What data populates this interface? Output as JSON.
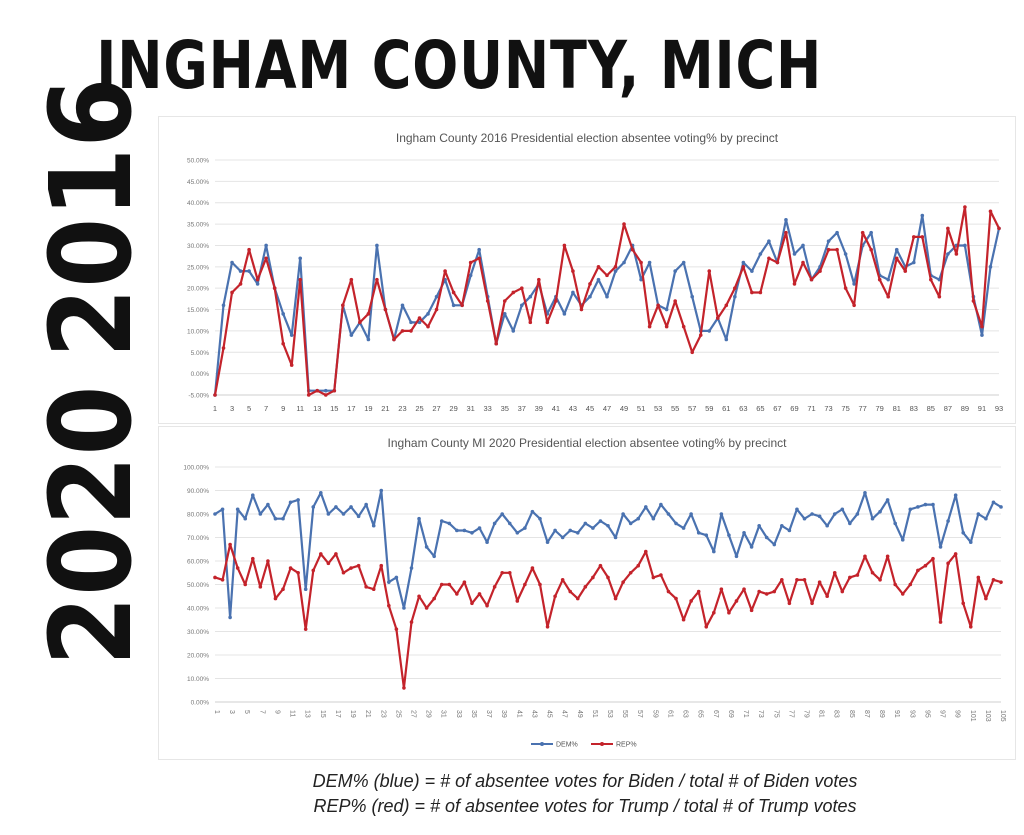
{
  "header": {
    "title": "INGHAM COUNTY, MICH"
  },
  "year_labels": {
    "first": "2016",
    "second": "2020"
  },
  "notes": {
    "dem": "DEM% (blue) = # of absentee votes for Biden / total # of Biden votes",
    "rep": "REP% (red) = # of absentee votes for Trump / total # of Trump votes"
  },
  "colors": {
    "dem": "#4a72b0",
    "rep": "#c4232b",
    "grid": "#e4e4e4",
    "axis_text": "#777777"
  },
  "chart_data": [
    {
      "type": "line",
      "title": "Ingham County 2016 Presidential election absentee voting% by precinct",
      "xlabel": "",
      "ylabel": "",
      "ylim": [
        -0.05,
        0.5
      ],
      "yticks": [
        -0.05,
        0,
        0.05,
        0.1,
        0.15,
        0.2,
        0.25,
        0.3,
        0.35,
        0.4,
        0.45,
        0.5
      ],
      "ytick_labels": [
        "-5.00%",
        "0.00%",
        "5.00%",
        "10.00%",
        "15.00%",
        "20.00%",
        "25.00%",
        "30.00%",
        "35.00%",
        "40.00%",
        "45.00%",
        "50.00%"
      ],
      "xtick_labels": [
        "1",
        "3",
        "5",
        "7",
        "9",
        "11",
        "13",
        "15",
        "17",
        "19",
        "21",
        "23",
        "25",
        "27",
        "29",
        "31",
        "33",
        "35",
        "37",
        "39",
        "41",
        "43",
        "45",
        "47",
        "49",
        "51",
        "53",
        "55",
        "57",
        "59",
        "61",
        "63",
        "65",
        "67",
        "69",
        "71",
        "73",
        "75",
        "77",
        "79",
        "81",
        "83",
        "85",
        "87",
        "89",
        "91",
        "93"
      ],
      "grid": true,
      "legend": "none",
      "series": [
        {
          "key": "dem",
          "values": [
            -0.05,
            0.16,
            0.26,
            0.24,
            0.24,
            0.21,
            0.3,
            0.2,
            0.14,
            0.09,
            0.27,
            -0.04,
            -0.04,
            -0.04,
            -0.04,
            0.16,
            0.09,
            0.12,
            0.08,
            0.3,
            0.15,
            0.08,
            0.16,
            0.12,
            0.12,
            0.14,
            0.18,
            0.22,
            0.16,
            0.16,
            0.23,
            0.29,
            0.18,
            0.07,
            0.14,
            0.1,
            0.16,
            0.18,
            0.21,
            0.14,
            0.18,
            0.14,
            0.19,
            0.16,
            0.18,
            0.22,
            0.18,
            0.24,
            0.26,
            0.3,
            0.22,
            0.26,
            0.16,
            0.15,
            0.24,
            0.26,
            0.18,
            0.1,
            0.1,
            0.13,
            0.08,
            0.18,
            0.26,
            0.24,
            0.28,
            0.31,
            0.26,
            0.36,
            0.28,
            0.3,
            0.22,
            0.25,
            0.31,
            0.33,
            0.28,
            0.21,
            0.3,
            0.33,
            0.23,
            0.22,
            0.29,
            0.25,
            0.26,
            0.37,
            0.23,
            0.22,
            0.28,
            0.3,
            0.3,
            0.18,
            0.09,
            0.25,
            0.34
          ]
        },
        {
          "key": "rep",
          "values": [
            -0.05,
            0.06,
            0.19,
            0.21,
            0.29,
            0.22,
            0.27,
            0.2,
            0.07,
            0.02,
            0.22,
            -0.05,
            -0.04,
            -0.05,
            -0.04,
            0.16,
            0.22,
            0.12,
            0.14,
            0.22,
            0.15,
            0.08,
            0.1,
            0.1,
            0.13,
            0.11,
            0.15,
            0.24,
            0.19,
            0.16,
            0.26,
            0.27,
            0.17,
            0.07,
            0.17,
            0.19,
            0.2,
            0.12,
            0.22,
            0.12,
            0.17,
            0.3,
            0.24,
            0.15,
            0.21,
            0.25,
            0.23,
            0.25,
            0.35,
            0.29,
            0.26,
            0.11,
            0.16,
            0.11,
            0.17,
            0.11,
            0.05,
            0.09,
            0.24,
            0.13,
            0.16,
            0.2,
            0.25,
            0.19,
            0.19,
            0.27,
            0.26,
            0.33,
            0.21,
            0.26,
            0.22,
            0.24,
            0.29,
            0.29,
            0.2,
            0.16,
            0.33,
            0.29,
            0.22,
            0.18,
            0.27,
            0.24,
            0.32,
            0.32,
            0.22,
            0.18,
            0.34,
            0.28,
            0.39,
            0.17,
            0.11,
            0.38,
            0.34
          ]
        }
      ]
    },
    {
      "type": "line",
      "title": "Ingham County MI 2020 Presidential election absentee voting% by precinct",
      "xlabel": "",
      "ylabel": "",
      "ylim": [
        0,
        1
      ],
      "yticks": [
        0,
        0.1,
        0.2,
        0.3,
        0.4,
        0.5,
        0.6,
        0.7,
        0.8,
        0.9,
        1.0
      ],
      "ytick_labels": [
        "0.00%",
        "10.00%",
        "20.00%",
        "30.00%",
        "40.00%",
        "50.00%",
        "60.00%",
        "70.00%",
        "80.00%",
        "90.00%",
        "100.00%"
      ],
      "xtick_labels": [
        "1",
        "3",
        "5",
        "7",
        "9",
        "11",
        "13",
        "15",
        "17",
        "19",
        "21",
        "23",
        "25",
        "27",
        "29",
        "31",
        "33",
        "35",
        "37",
        "39",
        "41",
        "43",
        "45",
        "47",
        "49",
        "51",
        "53",
        "55",
        "57",
        "59",
        "61",
        "63",
        "65",
        "67",
        "69",
        "71",
        "73",
        "75",
        "77",
        "79",
        "81",
        "83",
        "85",
        "87",
        "89",
        "91",
        "93",
        "95",
        "97",
        "99",
        "101",
        "103",
        "105"
      ],
      "grid": true,
      "legend": "bottom",
      "series": [
        {
          "key": "dem",
          "name": "DEM%",
          "values": [
            0.8,
            0.82,
            0.36,
            0.82,
            0.78,
            0.88,
            0.8,
            0.84,
            0.78,
            0.78,
            0.85,
            0.86,
            0.48,
            0.83,
            0.89,
            0.8,
            0.83,
            0.8,
            0.83,
            0.79,
            0.84,
            0.75,
            0.9,
            0.51,
            0.53,
            0.4,
            0.57,
            0.78,
            0.66,
            0.62,
            0.77,
            0.76,
            0.73,
            0.73,
            0.72,
            0.74,
            0.68,
            0.76,
            0.8,
            0.76,
            0.72,
            0.74,
            0.81,
            0.78,
            0.68,
            0.73,
            0.7,
            0.73,
            0.72,
            0.76,
            0.74,
            0.77,
            0.75,
            0.7,
            0.8,
            0.76,
            0.78,
            0.83,
            0.78,
            0.84,
            0.8,
            0.76,
            0.74,
            0.8,
            0.72,
            0.71,
            0.64,
            0.8,
            0.71,
            0.62,
            0.72,
            0.66,
            0.75,
            0.7,
            0.67,
            0.75,
            0.73,
            0.82,
            0.78,
            0.8,
            0.79,
            0.75,
            0.8,
            0.82,
            0.76,
            0.8,
            0.89,
            0.78,
            0.81,
            0.86,
            0.76,
            0.69,
            0.82,
            0.83,
            0.84,
            0.84,
            0.66,
            0.77,
            0.88,
            0.72,
            0.68,
            0.8,
            0.78,
            0.85,
            0.83
          ]
        },
        {
          "key": "rep",
          "name": "REP%",
          "values": [
            0.53,
            0.52,
            0.67,
            0.57,
            0.5,
            0.61,
            0.49,
            0.6,
            0.44,
            0.48,
            0.57,
            0.55,
            0.31,
            0.56,
            0.63,
            0.59,
            0.63,
            0.55,
            0.57,
            0.58,
            0.49,
            0.48,
            0.58,
            0.41,
            0.31,
            0.06,
            0.34,
            0.45,
            0.4,
            0.44,
            0.5,
            0.5,
            0.46,
            0.51,
            0.42,
            0.46,
            0.41,
            0.49,
            0.55,
            0.55,
            0.43,
            0.5,
            0.57,
            0.5,
            0.32,
            0.45,
            0.52,
            0.47,
            0.44,
            0.49,
            0.53,
            0.58,
            0.53,
            0.44,
            0.51,
            0.55,
            0.58,
            0.64,
            0.53,
            0.54,
            0.47,
            0.44,
            0.35,
            0.43,
            0.47,
            0.32,
            0.38,
            0.48,
            0.38,
            0.43,
            0.48,
            0.39,
            0.47,
            0.46,
            0.47,
            0.52,
            0.42,
            0.52,
            0.52,
            0.42,
            0.51,
            0.45,
            0.55,
            0.47,
            0.53,
            0.54,
            0.62,
            0.55,
            0.52,
            0.62,
            0.5,
            0.46,
            0.5,
            0.56,
            0.58,
            0.61,
            0.34,
            0.59,
            0.63,
            0.42,
            0.32,
            0.53,
            0.44,
            0.52,
            0.51
          ]
        }
      ]
    }
  ]
}
